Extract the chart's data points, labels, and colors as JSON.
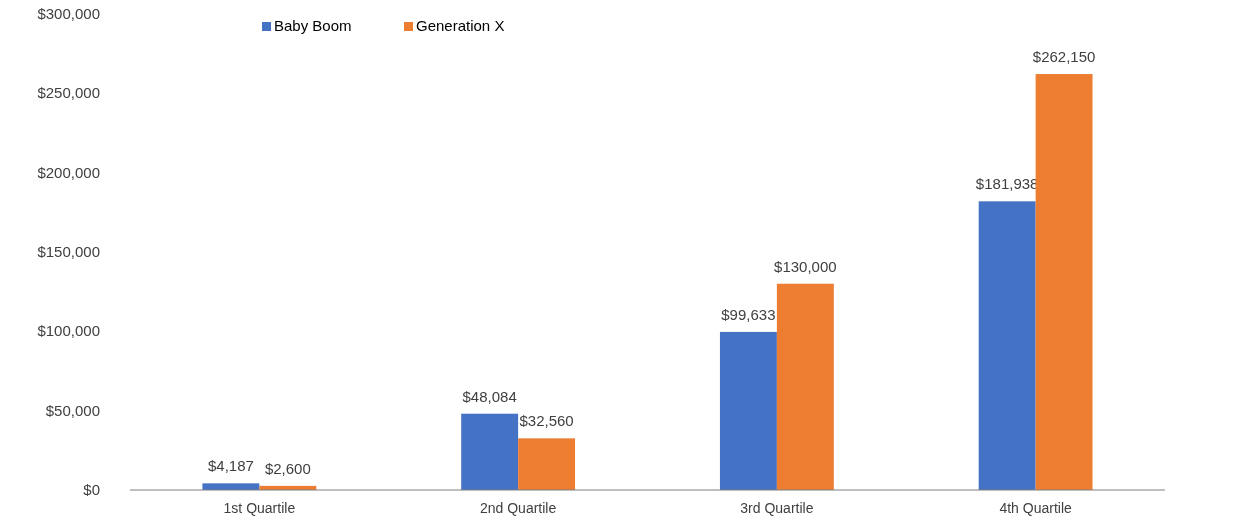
{
  "chart_data": {
    "type": "bar",
    "categories": [
      "1st Quartile",
      "2nd Quartile",
      "3rd Quartile",
      "4th Quartile"
    ],
    "series": [
      {
        "name": "Baby Boom",
        "color": "#4472c4",
        "values": [
          4187,
          48084,
          99633,
          181938
        ]
      },
      {
        "name": "Generation X",
        "color": "#ed7d31",
        "values": [
          2600,
          32560,
          130000,
          262150
        ]
      }
    ],
    "ylim": [
      0,
      300000
    ],
    "yticks": [
      {
        "value": 0,
        "label": "$0"
      },
      {
        "value": 50000,
        "label": "$50,000"
      },
      {
        "value": 100000,
        "label": "$100,000"
      },
      {
        "value": 150000,
        "label": "$150,000"
      },
      {
        "value": 200000,
        "label": "$200,000"
      },
      {
        "value": 250000,
        "label": "$250,000"
      },
      {
        "value": 300000,
        "label": "$300,000"
      }
    ],
    "value_labels": [
      [
        "$4,187",
        "$48,084",
        "$99,633",
        "$181,938"
      ],
      [
        "$2,600",
        "$32,560",
        "$130,000",
        "$262,150"
      ]
    ],
    "legend": "top left",
    "grid": false
  }
}
